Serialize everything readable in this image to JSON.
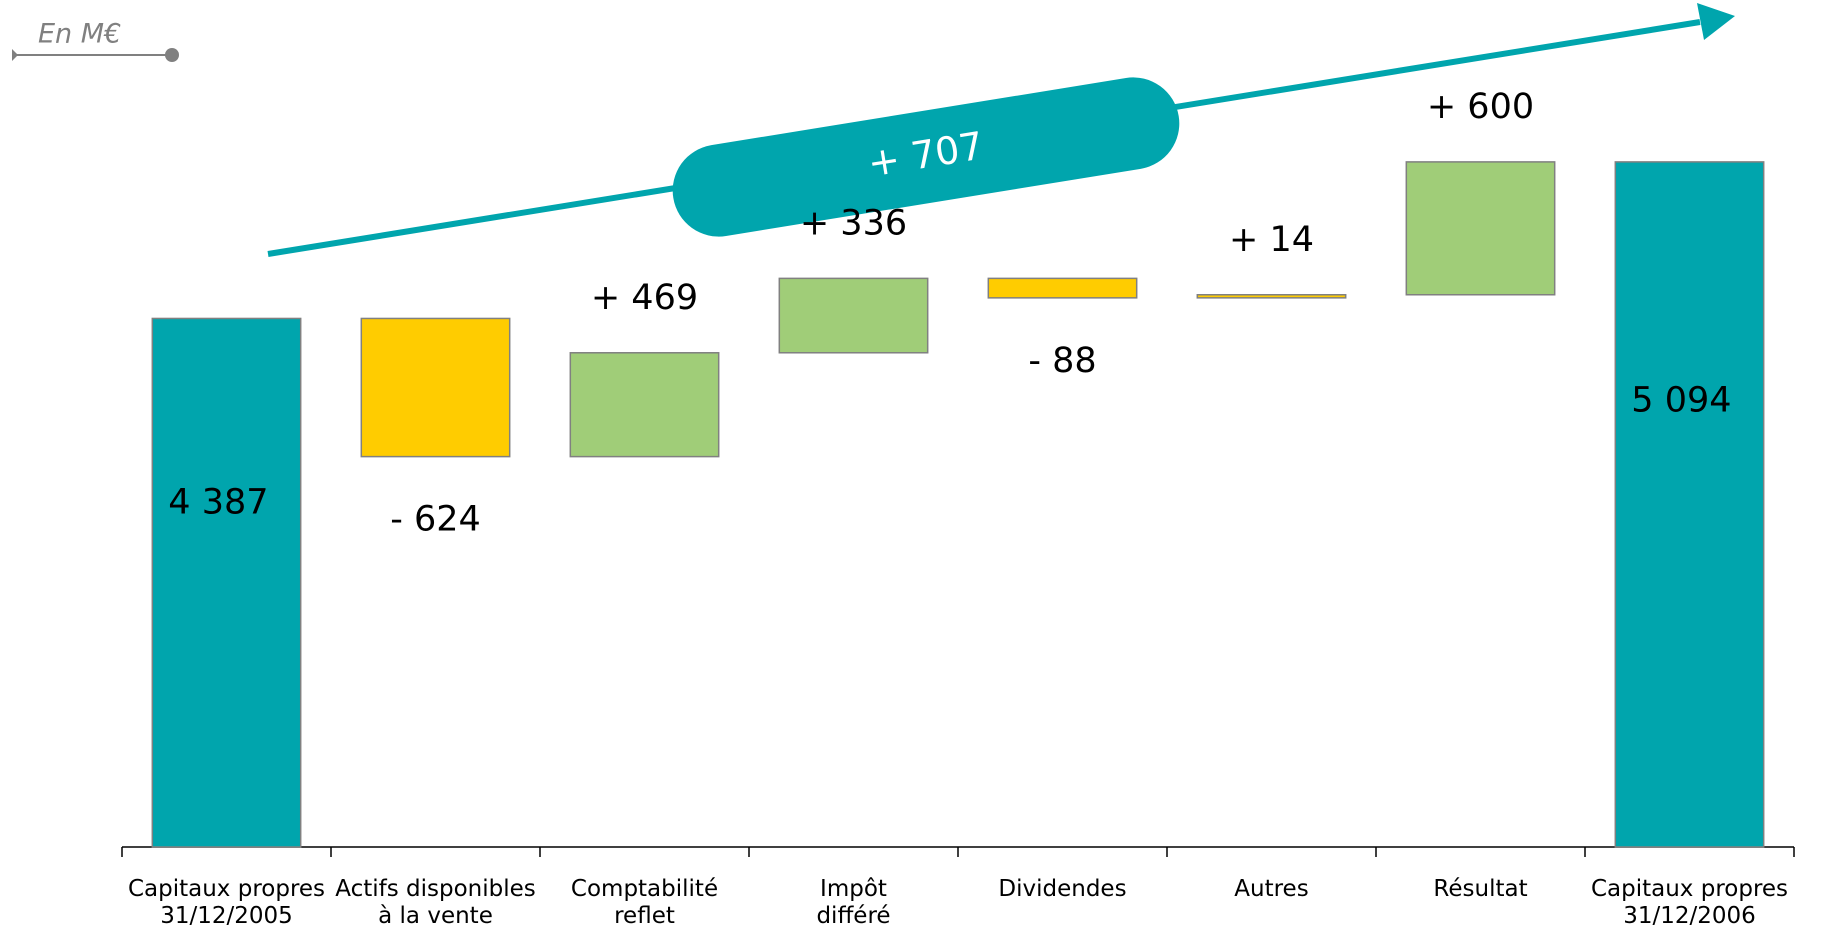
{
  "unit_note": "En M€",
  "chart_data": {
    "type": "waterfall",
    "categories": [
      "Capitaux propres\n31/12/2005",
      "Actifs disponibles\nà la vente",
      "Comptabilité\nreflet",
      "Impôt\ndifféré",
      "Dividendes",
      "Autres",
      "Résultat",
      "Capitaux propres\n31/12/2006"
    ],
    "values": [
      4387,
      -624,
      469,
      336,
      -88,
      14,
      600,
      5094
    ],
    "value_labels": [
      "4 387",
      "- 624",
      "+ 469",
      "+ 336",
      "- 88",
      "+ 14",
      "+ 600",
      "5 094"
    ],
    "measure": [
      "absolute",
      "relative",
      "relative",
      "relative",
      "relative",
      "relative",
      "relative",
      "absolute"
    ],
    "colors": [
      "#00a5ad",
      "#ffcc00",
      "#a0cd78",
      "#a0cd78",
      "#ffcc00",
      "#ffcc00",
      "#a0cd78",
      "#00a5ad"
    ],
    "ylim": [
      2000,
      5500
    ],
    "annotation": "+ 707"
  }
}
